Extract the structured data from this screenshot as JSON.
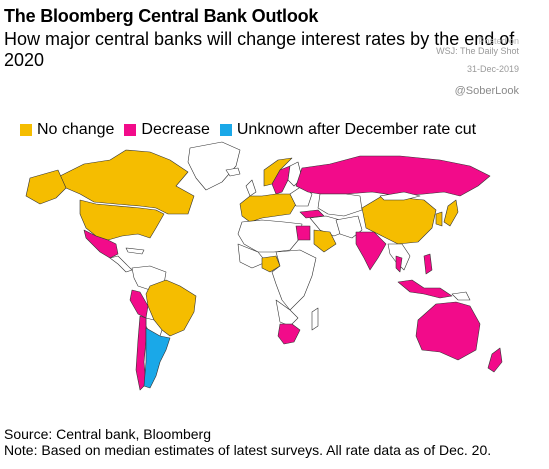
{
  "header": {
    "title": "The Bloomberg Central Bank Outlook",
    "subtitle": "How major central banks will change interest rates by the end of 2020"
  },
  "watermark": {
    "posted_on": "Posted on",
    "source_line": "WSJ: The Daily Shot",
    "date": "31-Dec-2019",
    "handle": "@SoberLook"
  },
  "legend": {
    "items": [
      {
        "label": "No change",
        "color": "#f5bd00"
      },
      {
        "label": "Decrease",
        "color": "#f20b8a"
      },
      {
        "label": "Unknown after December rate cut",
        "color": "#1aa8e8"
      }
    ]
  },
  "map": {
    "colors": {
      "no_change": "#f5bd00",
      "decrease": "#f20b8a",
      "unknown": "#1aa8e8",
      "other": "#ffffff",
      "border": "#333333"
    },
    "no_change": [
      "Canada",
      "United States",
      "Brazil",
      "Euro area",
      "Nigeria",
      "Saudi Arabia",
      "China",
      "Japan",
      "Korea",
      "Norway"
    ],
    "decrease": [
      "Mexico",
      "Chile",
      "Peru",
      "Russia",
      "India",
      "Indonesia",
      "Philippines",
      "Thailand",
      "Turkey",
      "Egypt",
      "South Africa",
      "Australia",
      "New Zealand",
      "Sweden"
    ],
    "unknown": [
      "Argentina"
    ]
  },
  "footer": {
    "source": "Source: Central bank, Bloomberg",
    "note": "Note: Based on median estimates of latest surveys. All rate data as of Dec. 20."
  }
}
